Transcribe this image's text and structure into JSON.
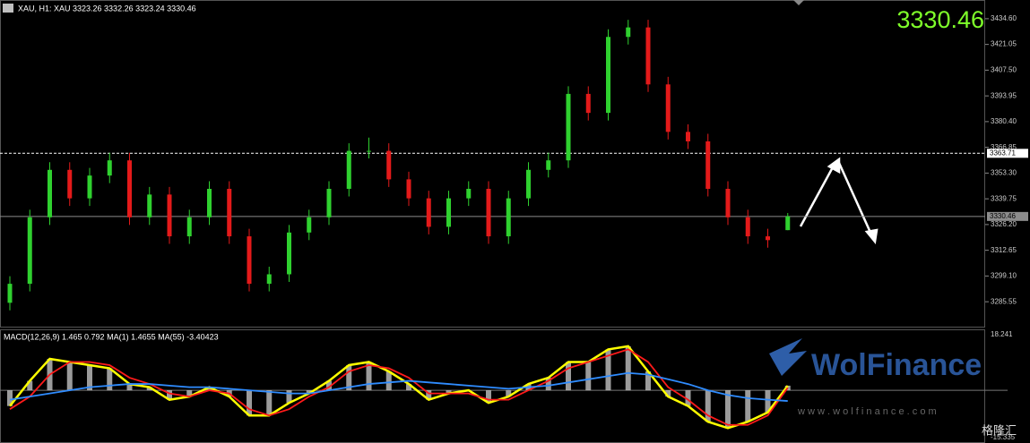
{
  "chart_data": [
    {
      "type": "candlestick",
      "title": "XAU, H1:  XAU  3323.26 3332.26 3323.24 3330.46",
      "last_price": 3330.46,
      "up_color": "#2fd12f",
      "down_color": "#e41a1a",
      "open": [
        3285,
        3295,
        3330,
        3355,
        3340,
        3352,
        3360,
        3330,
        3342,
        3320,
        3330,
        3345,
        3320,
        3295,
        3300,
        3322,
        3330,
        3345,
        3365,
        3365,
        3350,
        3340,
        3325,
        3340,
        3345,
        3320,
        3340,
        3355,
        3360,
        3395,
        3385,
        3425,
        3430,
        3400,
        3375,
        3370,
        3345,
        3330,
        3320,
        3323.26
      ],
      "high": [
        3299,
        3334,
        3359,
        3359,
        3356,
        3364,
        3364,
        3346,
        3346,
        3334,
        3349,
        3349,
        3324,
        3304,
        3326,
        3334,
        3349,
        3369,
        3372,
        3369,
        3354,
        3344,
        3344,
        3349,
        3349,
        3344,
        3359,
        3364,
        3399,
        3399,
        3429,
        3434,
        3434,
        3404,
        3379,
        3374,
        3349,
        3334,
        3324,
        3332.26
      ],
      "low": [
        3281,
        3291,
        3326,
        3336,
        3336,
        3348,
        3326,
        3326,
        3316,
        3316,
        3326,
        3316,
        3291,
        3291,
        3296,
        3318,
        3326,
        3341,
        3361,
        3346,
        3336,
        3321,
        3321,
        3336,
        3316,
        3316,
        3336,
        3351,
        3356,
        3381,
        3381,
        3421,
        3396,
        3371,
        3366,
        3341,
        3326,
        3316,
        3314,
        3323.24
      ],
      "close": [
        3295,
        3330,
        3355,
        3340,
        3352,
        3360,
        3330,
        3342,
        3320,
        3330,
        3345,
        3320,
        3295,
        3300,
        3322,
        3330,
        3345,
        3365,
        3365,
        3350,
        3340,
        3325,
        3340,
        3345,
        3320,
        3340,
        3355,
        3360,
        3395,
        3385,
        3425,
        3430,
        3400,
        3375,
        3370,
        3345,
        3330,
        3320,
        3318,
        3330.46
      ],
      "ylim": [
        3272.9,
        3443.5
      ],
      "yticks": [
        {
          "value": 3434.6,
          "label": "3434.60"
        },
        {
          "value": 3421.05,
          "label": "3421.05"
        },
        {
          "value": 3407.5,
          "label": "3407.50"
        },
        {
          "value": 3393.95,
          "label": "3393.95"
        },
        {
          "value": 3380.4,
          "label": "3380.40"
        },
        {
          "value": 3366.85,
          "label": "3366.85"
        },
        {
          "value": 3353.3,
          "label": "3353.30"
        },
        {
          "value": 3339.75,
          "label": "3339.75"
        },
        {
          "value": 3326.2,
          "label": "3326.20"
        },
        {
          "value": 3312.65,
          "label": "3312.65"
        },
        {
          "value": 3299.1,
          "label": "3299.10"
        },
        {
          "value": 3285.55,
          "label": "3285.55"
        }
      ],
      "levels": [
        {
          "value": 3363.71,
          "color": "#ffffff",
          "dashed": true
        },
        {
          "value": 3330.46,
          "color": "#8c8c8c",
          "dashed": false
        }
      ]
    },
    {
      "type": "macd",
      "title": "MACD(12,26,9) 1.465 0.792 MA(1) 1.4655 MA(55) -3.40423",
      "histogram_color": "#cfcfcf",
      "series": [
        {
          "color": "#ffff00",
          "values": [
            -5,
            3,
            10,
            9,
            8,
            7,
            2,
            1,
            -3,
            -2,
            1,
            -2,
            -8,
            -8,
            -4,
            -1,
            3,
            8,
            9,
            6,
            2,
            -3,
            -1,
            0,
            -4,
            -2,
            2,
            4,
            9,
            9,
            13,
            14,
            6,
            -2,
            -5,
            -10,
            -12,
            -10,
            -7,
            1.465
          ]
        },
        {
          "color": "#ff1a1a",
          "values": [
            -6,
            -2,
            5,
            9,
            9,
            8,
            4,
            2,
            -1,
            -2,
            0,
            -1,
            -6,
            -8,
            -6,
            -2,
            1,
            6,
            8,
            7,
            4,
            -1,
            -1,
            -1,
            -3,
            -3,
            0,
            3,
            7,
            9,
            11,
            13,
            9,
            1,
            -3,
            -8,
            -11,
            -11,
            -8,
            0.792
          ]
        },
        {
          "color": "#2f8cff",
          "values": [
            -3,
            -2,
            -1,
            0,
            1,
            1.5,
            2,
            2,
            1.5,
            1,
            1,
            0.5,
            0,
            -0.5,
            -1,
            -1,
            0,
            1,
            2,
            2.5,
            3,
            2.5,
            2,
            1.5,
            1,
            0.5,
            1,
            1.5,
            2.5,
            3.5,
            4.5,
            5.5,
            5,
            3.5,
            2,
            0,
            -1.5,
            -2.5,
            -3,
            -3.40423
          ]
        }
      ],
      "ylim": [
        -15.335,
        18.241
      ],
      "yticks": [
        18.241,
        -15.335
      ]
    }
  ],
  "watermark": {
    "brand": "WolFinance",
    "url": "w w w . w o l f i n a n c e . c o m",
    "source": "格隆汇"
  }
}
